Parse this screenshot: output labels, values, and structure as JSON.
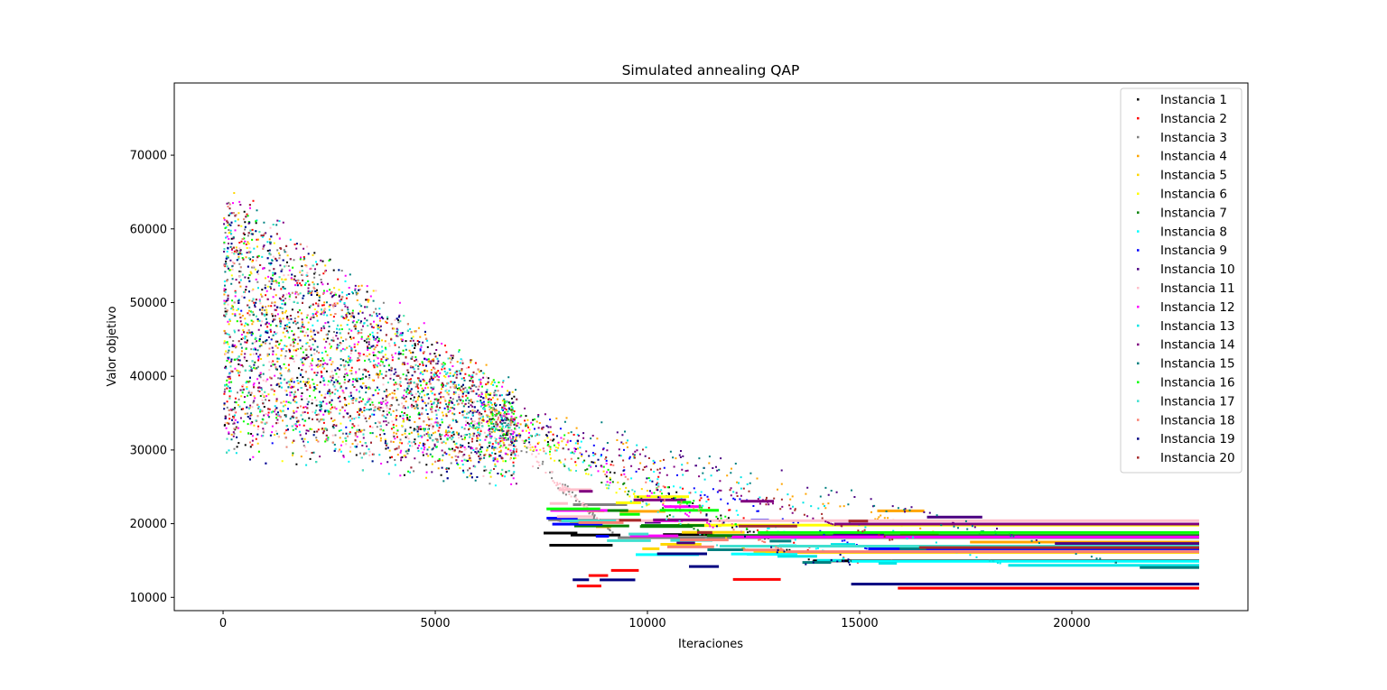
{
  "chart_data": {
    "type": "scatter",
    "title": "Simulated annealing QAP",
    "xlabel": "Iteraciones",
    "ylabel": "Valor objetivo",
    "xlim": [
      -1150,
      24150
    ],
    "ylim": [
      8200,
      79800
    ],
    "xticks": [
      0,
      5000,
      10000,
      15000,
      20000
    ],
    "yticks": [
      10000,
      20000,
      30000,
      40000,
      50000,
      60000,
      70000
    ],
    "grid": false,
    "legend_position": "top-right",
    "x_max": 23000,
    "series": [
      {
        "name": "Instancia 1",
        "color": "#000000",
        "final_start": 13900,
        "final_value": 14950
      },
      {
        "name": "Instancia 2",
        "color": "#ff0000",
        "final_start": 15900,
        "final_value": 11250
      },
      {
        "name": "Instancia 3",
        "color": "#808080",
        "final_start": 9300,
        "final_value": 18100
      },
      {
        "name": "Instancia 4",
        "color": "#ffa500",
        "final_start": 17600,
        "final_value": 17500
      },
      {
        "name": "Instancia 5",
        "color": "#ffd700",
        "final_start": 12500,
        "final_value": 16100
      },
      {
        "name": "Instancia 6",
        "color": "#ffff00",
        "final_start": 10800,
        "final_value": 19800
      },
      {
        "name": "Instancia 7",
        "color": "#008000",
        "final_start": 11400,
        "final_value": 18400
      },
      {
        "name": "Instancia 8",
        "color": "#00ffff",
        "final_start": 14800,
        "final_value": 14900
      },
      {
        "name": "Instancia 9",
        "color": "#0000ff",
        "final_start": 15200,
        "final_value": 16600
      },
      {
        "name": "Instancia 10",
        "color": "#4b0082",
        "final_start": 19600,
        "final_value": 17300
      },
      {
        "name": "Instancia 11",
        "color": "#ffc0cb",
        "final_start": 8900,
        "final_value": 20400
      },
      {
        "name": "Instancia 12",
        "color": "#ff00ff",
        "final_start": 12000,
        "final_value": 18200
      },
      {
        "name": "Instancia 13",
        "color": "#00e5e5",
        "final_start": 18500,
        "final_value": 14350
      },
      {
        "name": "Instancia 14",
        "color": "#800080",
        "final_start": 14400,
        "final_value": 19950
      },
      {
        "name": "Instancia 15",
        "color": "#008080",
        "final_start": 21600,
        "final_value": 14050
      },
      {
        "name": "Instancia 16",
        "color": "#00ff00",
        "final_start": 12600,
        "final_value": 18800
      },
      {
        "name": "Instancia 17",
        "color": "#40e0d0",
        "final_start": 11700,
        "final_value": 16950
      },
      {
        "name": "Instancia 18",
        "color": "#fa8072",
        "final_start": 13300,
        "final_value": 16200
      },
      {
        "name": "Instancia 19",
        "color": "#000080",
        "final_start": 14800,
        "final_value": 11800
      },
      {
        "name": "Instancia 20",
        "color": "#a52a2a",
        "final_start": 16400,
        "final_value": 16750
      }
    ]
  }
}
